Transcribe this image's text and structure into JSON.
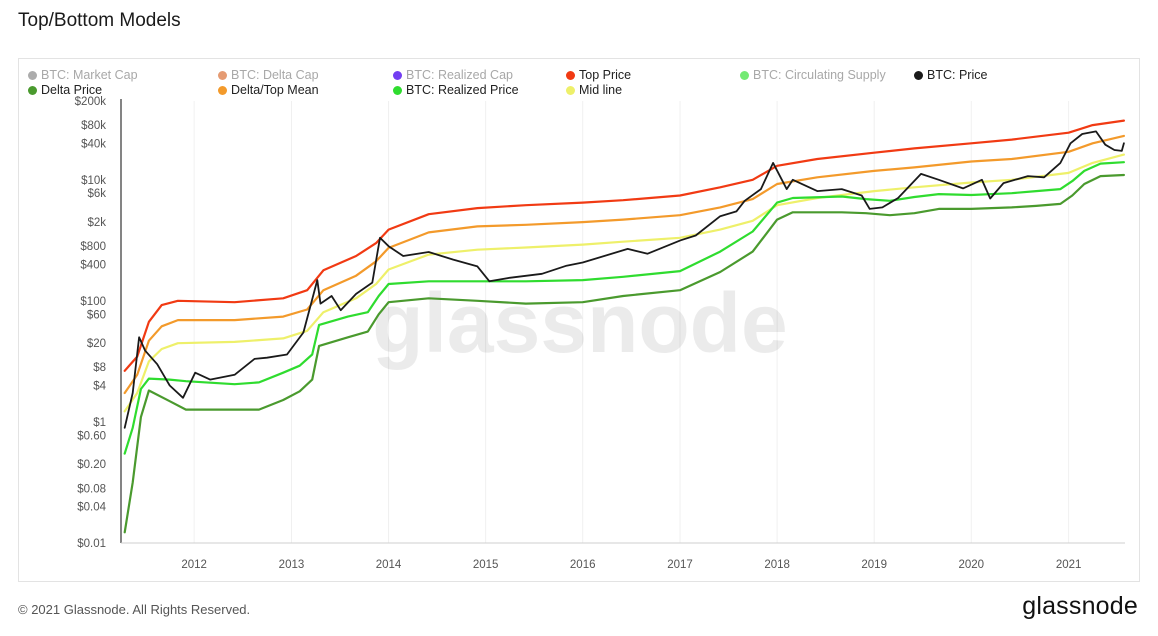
{
  "chart_data": {
    "type": "line",
    "title": "Top/Bottom Models",
    "y_scale": "log",
    "ylim": [
      0.01,
      200000
    ],
    "xlim": [
      "2011-04-01",
      "2021-08-01"
    ],
    "y_ticks": [
      {
        "v": 200000,
        "label": "$200k"
      },
      {
        "v": 80000,
        "label": "$80k"
      },
      {
        "v": 40000,
        "label": "$40k"
      },
      {
        "v": 10000,
        "label": "$10k"
      },
      {
        "v": 6000,
        "label": "$6k"
      },
      {
        "v": 2000,
        "label": "$2k"
      },
      {
        "v": 800,
        "label": "$800"
      },
      {
        "v": 400,
        "label": "$400"
      },
      {
        "v": 100,
        "label": "$100"
      },
      {
        "v": 60,
        "label": "$60"
      },
      {
        "v": 20,
        "label": "$20"
      },
      {
        "v": 8,
        "label": "$8"
      },
      {
        "v": 4,
        "label": "$4"
      },
      {
        "v": 1,
        "label": "$1"
      },
      {
        "v": 0.6,
        "label": "$0.60"
      },
      {
        "v": 0.2,
        "label": "$0.20"
      },
      {
        "v": 0.08,
        "label": "$0.08"
      },
      {
        "v": 0.04,
        "label": "$0.04"
      },
      {
        "v": 0.01,
        "label": "$0.01"
      }
    ],
    "x_ticks": [
      "2012",
      "2013",
      "2014",
      "2015",
      "2016",
      "2017",
      "2018",
      "2019",
      "2020",
      "2021"
    ],
    "legend_position": "top",
    "legend": [
      {
        "name": "BTC: Market Cap",
        "color": "#9e9e9e",
        "visible": false
      },
      {
        "name": "BTC: Delta Cap",
        "color": "#e0895a",
        "visible": false
      },
      {
        "name": "BTC: Realized Cap",
        "color": "#5b1cf0",
        "visible": false
      },
      {
        "name": "Top Price",
        "color": "#f13a13",
        "visible": true
      },
      {
        "name": "BTC: Circulating Supply",
        "color": "#5ce65c",
        "visible": false
      },
      {
        "name": "BTC: Price",
        "color": "#1a1a1a",
        "visible": true
      },
      {
        "name": "Delta Price",
        "color": "#4a9a2e",
        "visible": true
      },
      {
        "name": "Delta/Top Mean",
        "color": "#f39a2b",
        "visible": true
      },
      {
        "name": "BTC: Realized Price",
        "color": "#2fdc2f",
        "visible": true
      },
      {
        "name": "Mid line",
        "color": "#eef06a",
        "visible": true
      }
    ],
    "series": [
      {
        "name": "Top Price",
        "color": "#f13a13",
        "points": [
          [
            "2011-04-15",
            7
          ],
          [
            "2011-06-01",
            12
          ],
          [
            "2011-07-15",
            45
          ],
          [
            "2011-09-01",
            85
          ],
          [
            "2011-11-01",
            100
          ],
          [
            "2012-06-01",
            95
          ],
          [
            "2012-12-01",
            110
          ],
          [
            "2013-03-01",
            150
          ],
          [
            "2013-05-01",
            320
          ],
          [
            "2013-09-01",
            550
          ],
          [
            "2013-11-15",
            900
          ],
          [
            "2014-01-01",
            1500
          ],
          [
            "2014-06-01",
            2700
          ],
          [
            "2014-12-01",
            3400
          ],
          [
            "2015-06-01",
            3800
          ],
          [
            "2016-01-01",
            4200
          ],
          [
            "2016-06-01",
            4600
          ],
          [
            "2017-01-01",
            5500
          ],
          [
            "2017-06-01",
            7500
          ],
          [
            "2017-10-01",
            10000
          ],
          [
            "2018-01-01",
            17000
          ],
          [
            "2018-06-01",
            22000
          ],
          [
            "2019-01-01",
            28000
          ],
          [
            "2019-06-01",
            33000
          ],
          [
            "2020-01-01",
            40000
          ],
          [
            "2020-06-01",
            46000
          ],
          [
            "2021-01-01",
            60000
          ],
          [
            "2021-04-01",
            80000
          ],
          [
            "2021-07-28",
            95000
          ]
        ]
      },
      {
        "name": "Delta/Top Mean",
        "color": "#f39a2b",
        "points": [
          [
            "2011-04-15",
            3
          ],
          [
            "2011-06-01",
            6
          ],
          [
            "2011-07-15",
            22
          ],
          [
            "2011-09-01",
            38
          ],
          [
            "2011-11-01",
            48
          ],
          [
            "2012-06-01",
            48
          ],
          [
            "2012-12-01",
            55
          ],
          [
            "2013-03-01",
            72
          ],
          [
            "2013-05-01",
            150
          ],
          [
            "2013-09-01",
            260
          ],
          [
            "2013-11-15",
            450
          ],
          [
            "2014-01-01",
            750
          ],
          [
            "2014-06-01",
            1350
          ],
          [
            "2014-12-01",
            1700
          ],
          [
            "2015-06-01",
            1800
          ],
          [
            "2016-01-01",
            2000
          ],
          [
            "2016-06-01",
            2200
          ],
          [
            "2017-01-01",
            2600
          ],
          [
            "2017-06-01",
            3500
          ],
          [
            "2017-10-01",
            4800
          ],
          [
            "2018-01-01",
            8500
          ],
          [
            "2018-06-01",
            11000
          ],
          [
            "2019-01-01",
            14000
          ],
          [
            "2019-06-01",
            16000
          ],
          [
            "2020-01-01",
            20000
          ],
          [
            "2020-06-01",
            22000
          ],
          [
            "2021-01-01",
            29000
          ],
          [
            "2021-04-01",
            40000
          ],
          [
            "2021-07-28",
            53000
          ]
        ]
      },
      {
        "name": "Mid line",
        "color": "#eef06a",
        "points": [
          [
            "2011-04-15",
            1.5
          ],
          [
            "2011-06-01",
            3
          ],
          [
            "2011-07-15",
            10
          ],
          [
            "2011-09-01",
            16
          ],
          [
            "2011-11-01",
            20
          ],
          [
            "2012-06-01",
            21
          ],
          [
            "2012-12-01",
            24
          ],
          [
            "2013-03-01",
            32
          ],
          [
            "2013-05-01",
            65
          ],
          [
            "2013-09-01",
            110
          ],
          [
            "2013-11-15",
            190
          ],
          [
            "2014-01-01",
            330
          ],
          [
            "2014-06-01",
            580
          ],
          [
            "2014-12-01",
            700
          ],
          [
            "2015-06-01",
            760
          ],
          [
            "2016-01-01",
            850
          ],
          [
            "2016-06-01",
            950
          ],
          [
            "2017-01-01",
            1100
          ],
          [
            "2017-06-01",
            1500
          ],
          [
            "2017-10-01",
            2100
          ],
          [
            "2018-01-01",
            3800
          ],
          [
            "2018-06-01",
            5000
          ],
          [
            "2019-01-01",
            6500
          ],
          [
            "2019-06-01",
            7500
          ],
          [
            "2020-01-01",
            9000
          ],
          [
            "2020-06-01",
            10000
          ],
          [
            "2021-01-01",
            13000
          ],
          [
            "2021-04-01",
            19000
          ],
          [
            "2021-07-28",
            26000
          ]
        ]
      },
      {
        "name": "BTC: Realized Price",
        "color": "#2fdc2f",
        "points": [
          [
            "2011-04-15",
            0.3
          ],
          [
            "2011-05-15",
            0.8
          ],
          [
            "2011-06-15",
            3.5
          ],
          [
            "2011-07-15",
            5.2
          ],
          [
            "2011-10-01",
            5.0
          ],
          [
            "2011-12-01",
            4.7
          ],
          [
            "2012-06-01",
            4.2
          ],
          [
            "2012-09-01",
            4.5
          ],
          [
            "2012-12-01",
            6.5
          ],
          [
            "2013-02-01",
            8.5
          ],
          [
            "2013-03-20",
            13
          ],
          [
            "2013-04-15",
            40
          ],
          [
            "2013-08-01",
            55
          ],
          [
            "2013-10-15",
            65
          ],
          [
            "2013-11-25",
            120
          ],
          [
            "2014-01-01",
            190
          ],
          [
            "2014-06-01",
            210
          ],
          [
            "2014-12-01",
            210
          ],
          [
            "2015-06-01",
            210
          ],
          [
            "2016-01-01",
            220
          ],
          [
            "2016-06-01",
            250
          ],
          [
            "2017-01-01",
            310
          ],
          [
            "2017-06-01",
            650
          ],
          [
            "2017-10-01",
            1400
          ],
          [
            "2018-01-01",
            4200
          ],
          [
            "2018-03-01",
            5000
          ],
          [
            "2018-09-01",
            5300
          ],
          [
            "2018-12-01",
            4800
          ],
          [
            "2019-03-01",
            4500
          ],
          [
            "2019-06-01",
            5200
          ],
          [
            "2019-09-01",
            5800
          ],
          [
            "2020-01-01",
            5600
          ],
          [
            "2020-06-01",
            6000
          ],
          [
            "2020-09-01",
            6500
          ],
          [
            "2020-12-01",
            7000
          ],
          [
            "2021-01-15",
            9500
          ],
          [
            "2021-03-01",
            14000
          ],
          [
            "2021-05-01",
            18500
          ],
          [
            "2021-07-28",
            19500
          ]
        ]
      },
      {
        "name": "Delta Price",
        "color": "#4a9a2e",
        "points": [
          [
            "2011-04-15",
            0.015
          ],
          [
            "2011-05-15",
            0.1
          ],
          [
            "2011-06-15",
            1.2
          ],
          [
            "2011-07-15",
            3.3
          ],
          [
            "2011-10-01",
            2.2
          ],
          [
            "2011-12-01",
            1.6
          ],
          [
            "2012-06-01",
            1.6
          ],
          [
            "2012-09-01",
            1.6
          ],
          [
            "2012-12-01",
            2.3
          ],
          [
            "2013-02-01",
            3.2
          ],
          [
            "2013-03-20",
            5
          ],
          [
            "2013-04-15",
            18
          ],
          [
            "2013-08-01",
            25
          ],
          [
            "2013-10-15",
            31
          ],
          [
            "2013-11-25",
            60
          ],
          [
            "2014-01-01",
            95
          ],
          [
            "2014-06-01",
            110
          ],
          [
            "2014-12-01",
            100
          ],
          [
            "2015-06-01",
            90
          ],
          [
            "2016-01-01",
            95
          ],
          [
            "2016-06-01",
            120
          ],
          [
            "2017-01-01",
            150
          ],
          [
            "2017-06-01",
            300
          ],
          [
            "2017-10-01",
            650
          ],
          [
            "2018-01-01",
            2200
          ],
          [
            "2018-03-01",
            2900
          ],
          [
            "2018-09-01",
            2900
          ],
          [
            "2018-12-01",
            2800
          ],
          [
            "2019-03-01",
            2600
          ],
          [
            "2019-06-01",
            2800
          ],
          [
            "2019-09-01",
            3300
          ],
          [
            "2020-01-01",
            3300
          ],
          [
            "2020-06-01",
            3500
          ],
          [
            "2020-09-01",
            3700
          ],
          [
            "2020-12-01",
            4000
          ],
          [
            "2021-01-15",
            5500
          ],
          [
            "2021-03-01",
            8500
          ],
          [
            "2021-05-01",
            11500
          ],
          [
            "2021-07-28",
            12000
          ]
        ]
      },
      {
        "name": "BTC: Price",
        "color": "#1a1a1a",
        "points": [
          [
            "2011-04-15",
            0.8
          ],
          [
            "2011-05-15",
            3
          ],
          [
            "2011-06-08",
            25
          ],
          [
            "2011-07-01",
            15
          ],
          [
            "2011-08-15",
            9
          ],
          [
            "2011-10-01",
            4
          ],
          [
            "2011-11-20",
            2.5
          ],
          [
            "2012-01-05",
            6.5
          ],
          [
            "2012-03-01",
            5
          ],
          [
            "2012-06-01",
            6
          ],
          [
            "2012-08-15",
            11
          ],
          [
            "2012-10-01",
            11.5
          ],
          [
            "2012-12-15",
            13
          ],
          [
            "2013-02-15",
            30
          ],
          [
            "2013-04-08",
            220
          ],
          [
            "2013-04-20",
            90
          ],
          [
            "2013-06-01",
            120
          ],
          [
            "2013-07-05",
            70
          ],
          [
            "2013-09-01",
            130
          ],
          [
            "2013-11-01",
            200
          ],
          [
            "2013-11-30",
            1100
          ],
          [
            "2014-01-01",
            800
          ],
          [
            "2014-02-25",
            550
          ],
          [
            "2014-06-01",
            640
          ],
          [
            "2014-09-01",
            480
          ],
          [
            "2014-12-01",
            370
          ],
          [
            "2015-01-15",
            210
          ],
          [
            "2015-04-01",
            240
          ],
          [
            "2015-08-01",
            280
          ],
          [
            "2015-11-01",
            380
          ],
          [
            "2016-01-01",
            430
          ],
          [
            "2016-06-18",
            720
          ],
          [
            "2016-09-01",
            600
          ],
          [
            "2017-01-03",
            1000
          ],
          [
            "2017-03-01",
            1200
          ],
          [
            "2017-06-01",
            2500
          ],
          [
            "2017-08-01",
            3000
          ],
          [
            "2017-09-01",
            4500
          ],
          [
            "2017-11-01",
            7000
          ],
          [
            "2017-12-17",
            19000
          ],
          [
            "2018-02-06",
            7000
          ],
          [
            "2018-03-01",
            10000
          ],
          [
            "2018-06-01",
            6500
          ],
          [
            "2018-09-01",
            7000
          ],
          [
            "2018-11-15",
            5500
          ],
          [
            "2018-12-15",
            3300
          ],
          [
            "2019-02-01",
            3500
          ],
          [
            "2019-04-01",
            5000
          ],
          [
            "2019-06-26",
            12500
          ],
          [
            "2019-09-01",
            10000
          ],
          [
            "2019-12-01",
            7200
          ],
          [
            "2020-02-10",
            10000
          ],
          [
            "2020-03-12",
            4900
          ],
          [
            "2020-05-01",
            8800
          ],
          [
            "2020-08-01",
            11500
          ],
          [
            "2020-10-01",
            11000
          ],
          [
            "2020-12-01",
            19000
          ],
          [
            "2021-01-08",
            40000
          ],
          [
            "2021-02-21",
            57000
          ],
          [
            "2021-04-14",
            63000
          ],
          [
            "2021-05-19",
            38000
          ],
          [
            "2021-06-22",
            31000
          ],
          [
            "2021-07-20",
            30000
          ],
          [
            "2021-07-28",
            40000
          ]
        ]
      }
    ],
    "watermark": "glassnode"
  },
  "footer": {
    "copyright": "© 2021 Glassnode. All Rights Reserved.",
    "brand": "glassnode"
  }
}
